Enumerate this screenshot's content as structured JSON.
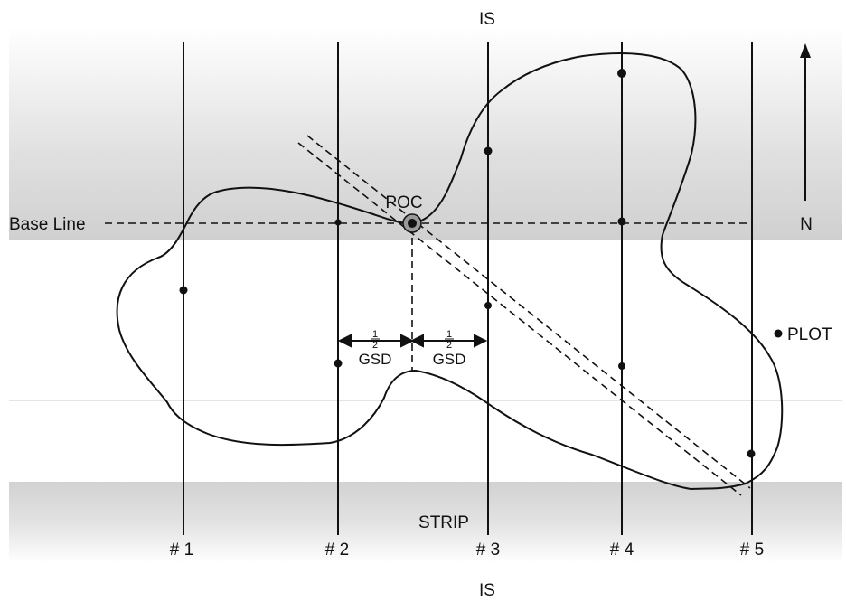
{
  "labels": {
    "top_is": "IS",
    "bottom_is": "IS",
    "base_line": "Base Line",
    "poc": "POC",
    "north": "N",
    "plot": "PLOT",
    "strip": "STRIP",
    "half_numerator": "1",
    "half_denominator": "2",
    "gsd": "GSD"
  },
  "transects": [
    {
      "label": "# 1"
    },
    {
      "label": "# 2"
    },
    {
      "label": "# 3"
    },
    {
      "label": "# 4"
    },
    {
      "label": "# 5"
    }
  ],
  "colors": {
    "band_dark": "#d2d2d2",
    "band_light": "#ffffff",
    "ink": "#111111"
  }
}
